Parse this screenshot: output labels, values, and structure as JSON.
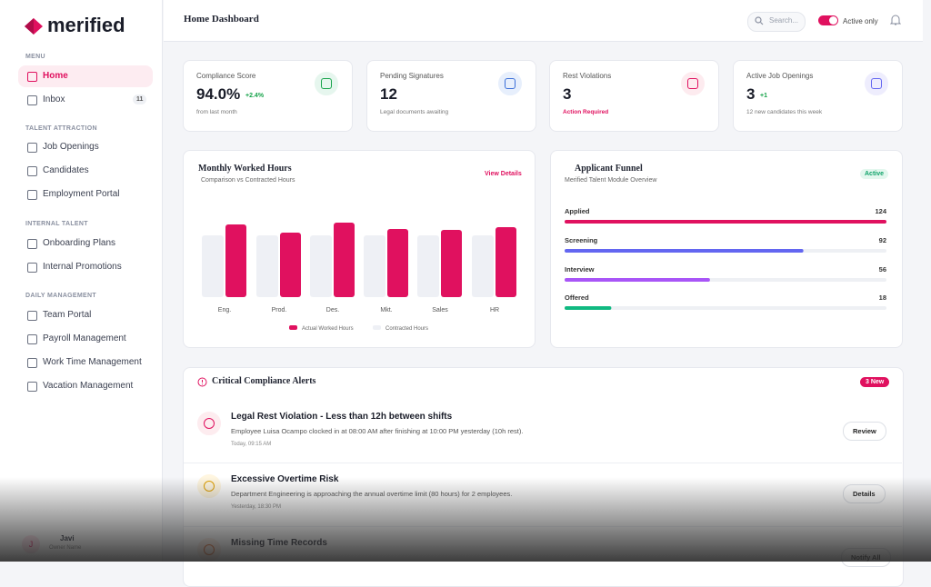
{
  "sidebar": {
    "logo": "merified",
    "sections": [
      {
        "title": "MENU",
        "items": [
          {
            "label": "Home"
          },
          {
            "label": "Inbox",
            "badge": 11
          }
        ]
      },
      {
        "title": "TALENT ATTRACTION",
        "items": [
          {
            "label": "Job Openings"
          },
          {
            "label": "Candidates"
          },
          {
            "label": "Employment Portal"
          }
        ]
      },
      {
        "title": "INTERNAL TALENT",
        "items": [
          {
            "label": "Onboarding Plans"
          },
          {
            "label": "Internal Promotions"
          }
        ]
      },
      {
        "title": "DAILY MANAGEMENT",
        "items": [
          {
            "label": "Team Portal"
          },
          {
            "label": "Payroll Management"
          },
          {
            "label": "Work Time Management"
          },
          {
            "label": "Vacation Management"
          }
        ]
      }
    ],
    "user": {
      "initial": "J",
      "name": "Javi",
      "role": "Owner Name"
    }
  },
  "header": {
    "title": "Home Dashboard",
    "search_placeholder": "Search...",
    "toggle_label": "Active only"
  },
  "stats": [
    {
      "label": "Compliance Score",
      "value": "94.0%",
      "delta": "+2.4%",
      "note": "from last month"
    },
    {
      "label": "Pending Signatures",
      "value": "12",
      "note": "Legal documents awaiting"
    },
    {
      "label": "Rest Violations",
      "value": "3",
      "note": "Action Required"
    },
    {
      "label": "Active Job Openings",
      "value": "3",
      "delta": "+1",
      "note": "12 new candidates this week"
    }
  ],
  "chart_data": [
    {
      "type": "bar",
      "title": "Monthly Worked Hours",
      "subtitle": "Comparison vs Contracted Hours",
      "link": "View Details",
      "categories": [
        "Eng.",
        "Prod.",
        "Des.",
        "Mkt.",
        "Sales",
        "HR"
      ],
      "series": [
        {
          "name": "Actual Worked Hours",
          "color": "#e0115f",
          "values": [
            80,
            71,
            82,
            75,
            74,
            77
          ]
        },
        {
          "name": "Contracted Hours",
          "color": "#eef0f5",
          "values": [
            68,
            68,
            68,
            68,
            68,
            68
          ]
        }
      ]
    },
    {
      "type": "funnel",
      "title": "Applicant Funnel",
      "subtitle": "Merified Talent Module Overview",
      "badge": "Active",
      "categories": [
        "Applied",
        "Screening",
        "Interview",
        "Offered"
      ],
      "values": [
        124,
        92,
        56,
        18
      ],
      "colors": [
        "#e0115f",
        "#6366f1",
        "#a855f7",
        "#10b981"
      ]
    }
  ],
  "alerts": {
    "title": "Critical Compliance Alerts",
    "badge": "3 New",
    "items": [
      {
        "title": "Legal Rest Violation - Less than 12h between shifts",
        "description": "Employee Luisa Ocampo clocked in at 08:00 AM after finishing at 10:00 PM yesterday (10h rest).",
        "time": "Today, 09:15 AM",
        "action": "Review"
      },
      {
        "title": "Excessive Overtime Risk",
        "description": "Department Engineering is approaching the annual overtime limit (80 hours) for 2 employees.",
        "time": "Yesterday, 18:30 PM",
        "action": "Details"
      },
      {
        "title": "Missing Time Records",
        "action": "Notify All"
      }
    ]
  }
}
